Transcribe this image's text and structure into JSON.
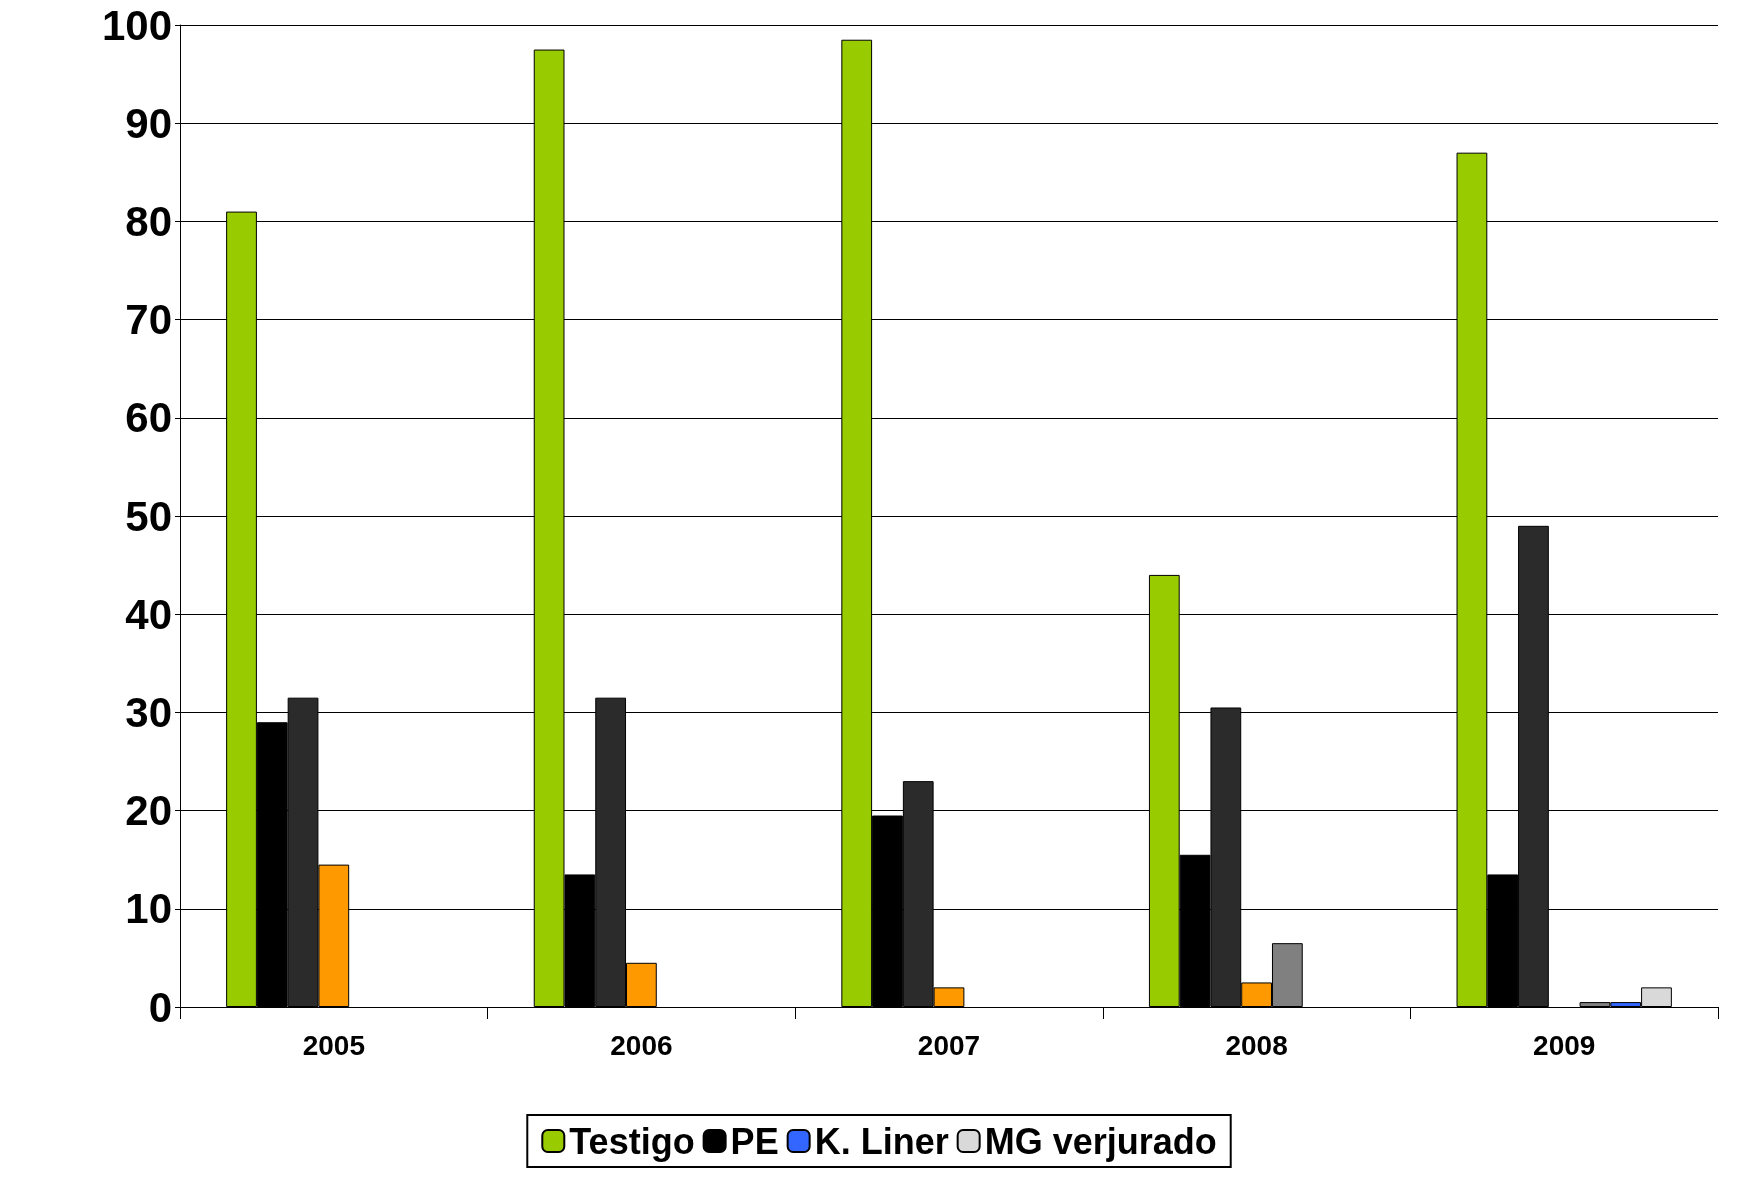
{
  "chart_data": {
    "type": "bar",
    "categories": [
      "2005",
      "2006",
      "2007",
      "2008",
      "2009"
    ],
    "series": [
      {
        "name": "Testigo",
        "color": "#99cc00",
        "values": [
          81,
          97.5,
          98.5,
          44,
          87
        ]
      },
      {
        "name": "PE",
        "color": "#000000",
        "values": [
          29,
          13.5,
          19.5,
          15.5,
          13.5
        ]
      },
      {
        "color": "#2b2b2b",
        "values": [
          31.5,
          31.5,
          23,
          30.5,
          49
        ]
      },
      {
        "color": "#ff9900",
        "values": [
          14.5,
          4.5,
          2,
          2.5,
          null
        ]
      },
      {
        "color": "#808080",
        "values": [
          null,
          null,
          null,
          6.5,
          0.5
        ]
      },
      {
        "name": "K. Liner",
        "color": "#3366ff",
        "values": [
          null,
          null,
          null,
          null,
          0.5
        ]
      },
      {
        "name": "MG verjurado",
        "color": "#d9d9d9",
        "values": [
          null,
          null,
          null,
          null,
          2
        ]
      }
    ],
    "ylim": [
      0,
      100
    ],
    "yticks": [
      0,
      10,
      20,
      30,
      40,
      50,
      60,
      70,
      80,
      90,
      100
    ],
    "grid": "y",
    "legend": "bottom"
  }
}
